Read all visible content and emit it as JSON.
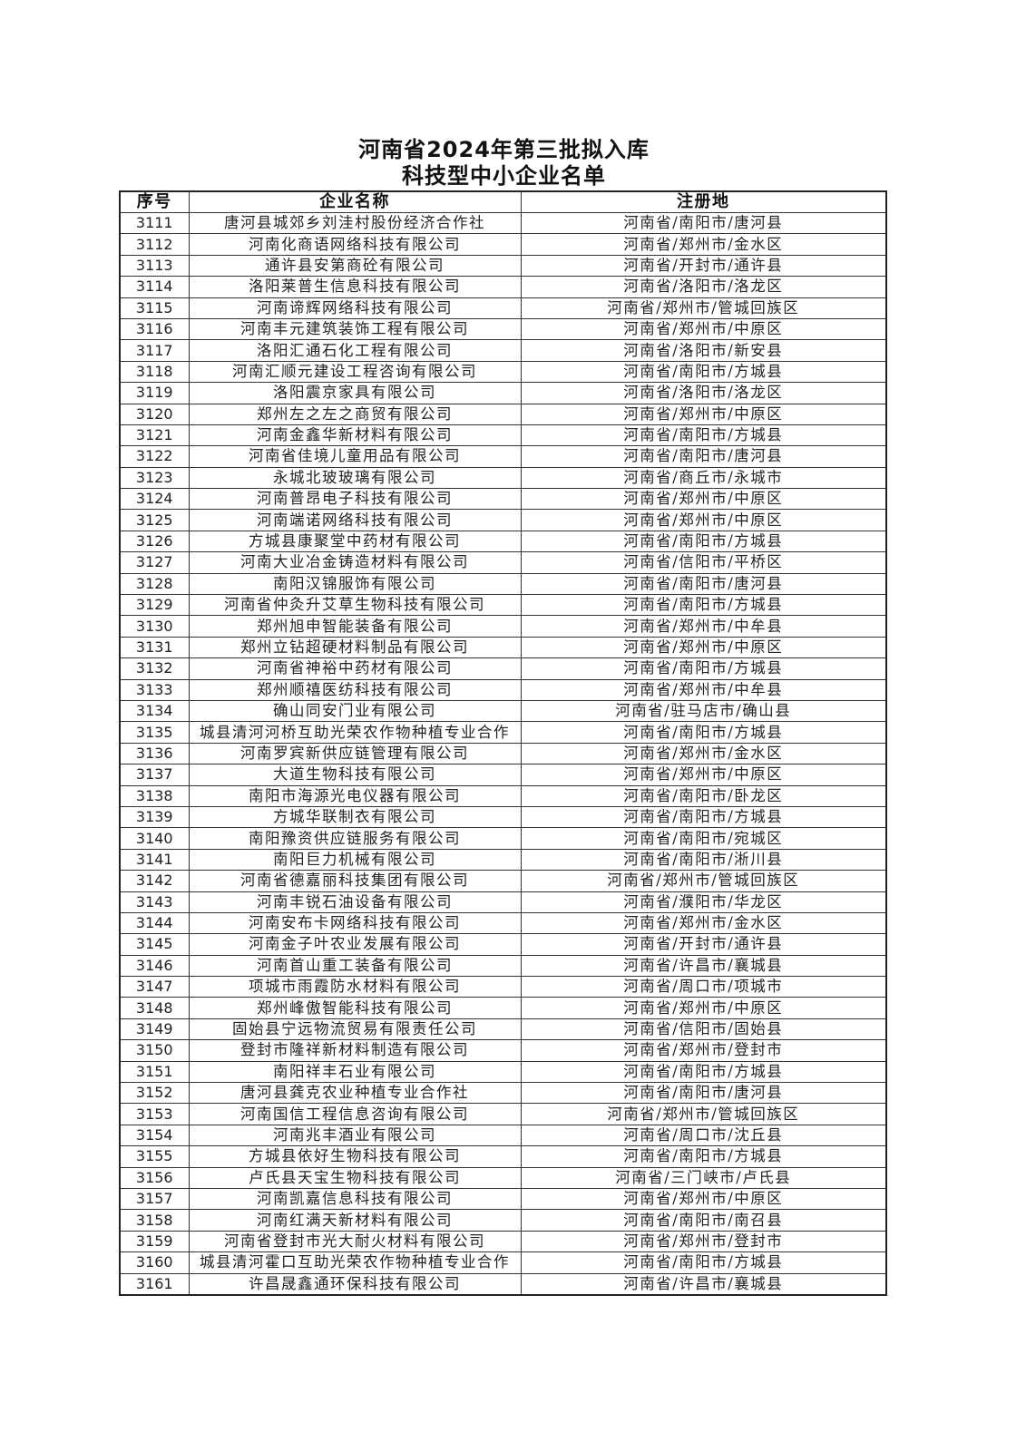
{
  "title": {
    "line1": "河南省2024年第三批拟入库",
    "line2": "科技型中小企业名单"
  },
  "table": {
    "headers": [
      "序号",
      "企业名称",
      "注册地"
    ],
    "rows": [
      [
        "3111",
        "唐河县城郊乡刘洼村股份经济合作社",
        "河南省/南阳市/唐河县"
      ],
      [
        "3112",
        "河南化商语网络科技有限公司",
        "河南省/郑州市/金水区"
      ],
      [
        "3113",
        "通许县安第商砼有限公司",
        "河南省/开封市/通许县"
      ],
      [
        "3114",
        "洛阳莱普生信息科技有限公司",
        "河南省/洛阳市/洛龙区"
      ],
      [
        "3115",
        "河南谛辉网络科技有限公司",
        "河南省/郑州市/管城回族区"
      ],
      [
        "3116",
        "河南丰元建筑装饰工程有限公司",
        "河南省/郑州市/中原区"
      ],
      [
        "3117",
        "洛阳汇通石化工程有限公司",
        "河南省/洛阳市/新安县"
      ],
      [
        "3118",
        "河南汇顺元建设工程咨询有限公司",
        "河南省/南阳市/方城县"
      ],
      [
        "3119",
        "洛阳震京家具有限公司",
        "河南省/洛阳市/洛龙区"
      ],
      [
        "3120",
        "郑州左之左之商贸有限公司",
        "河南省/郑州市/中原区"
      ],
      [
        "3121",
        "河南金鑫华新材料有限公司",
        "河南省/南阳市/方城县"
      ],
      [
        "3122",
        "河南省佳境儿童用品有限公司",
        "河南省/南阳市/唐河县"
      ],
      [
        "3123",
        "永城北玻玻璃有限公司",
        "河南省/商丘市/永城市"
      ],
      [
        "3124",
        "河南普昂电子科技有限公司",
        "河南省/郑州市/中原区"
      ],
      [
        "3125",
        "河南端诺网络科技有限公司",
        "河南省/郑州市/中原区"
      ],
      [
        "3126",
        "方城县康聚堂中药材有限公司",
        "河南省/南阳市/方城县"
      ],
      [
        "3127",
        "河南大业冶金铸造材料有限公司",
        "河南省/信阳市/平桥区"
      ],
      [
        "3128",
        "南阳汉锦服饰有限公司",
        "河南省/南阳市/唐河县"
      ],
      [
        "3129",
        "河南省仲灸升艾草生物科技有限公司",
        "河南省/南阳市/方城县"
      ],
      [
        "3130",
        "郑州旭申智能装备有限公司",
        "河南省/郑州市/中牟县"
      ],
      [
        "3131",
        "郑州立钻超硬材料制品有限公司",
        "河南省/郑州市/中原区"
      ],
      [
        "3132",
        "河南省神裕中药材有限公司",
        "河南省/南阳市/方城县"
      ],
      [
        "3133",
        "郑州顺禧医纺科技有限公司",
        "河南省/郑州市/中牟县"
      ],
      [
        "3134",
        "确山同安门业有限公司",
        "河南省/驻马店市/确山县"
      ],
      [
        "3135",
        "城县清河河桥互助光荣农作物种植专业合作",
        "河南省/南阳市/方城县"
      ],
      [
        "3136",
        "河南罗宾新供应链管理有限公司",
        "河南省/郑州市/金水区"
      ],
      [
        "3137",
        "大道生物科技有限公司",
        "河南省/郑州市/中原区"
      ],
      [
        "3138",
        "南阳市海源光电仪器有限公司",
        "河南省/南阳市/卧龙区"
      ],
      [
        "3139",
        "方城华联制衣有限公司",
        "河南省/南阳市/方城县"
      ],
      [
        "3140",
        "南阳豫资供应链服务有限公司",
        "河南省/南阳市/宛城区"
      ],
      [
        "3141",
        "南阳巨力机械有限公司",
        "河南省/南阳市/淅川县"
      ],
      [
        "3142",
        "河南省德嘉丽科技集团有限公司",
        "河南省/郑州市/管城回族区"
      ],
      [
        "3143",
        "河南丰锐石油设备有限公司",
        "河南省/濮阳市/华龙区"
      ],
      [
        "3144",
        "河南安布卡网络科技有限公司",
        "河南省/郑州市/金水区"
      ],
      [
        "3145",
        "河南金子叶农业发展有限公司",
        "河南省/开封市/通许县"
      ],
      [
        "3146",
        "河南首山重工装备有限公司",
        "河南省/许昌市/襄城县"
      ],
      [
        "3147",
        "项城市雨霞防水材料有限公司",
        "河南省/周口市/项城市"
      ],
      [
        "3148",
        "郑州峰傲智能科技有限公司",
        "河南省/郑州市/中原区"
      ],
      [
        "3149",
        "固始县宁远物流贸易有限责任公司",
        "河南省/信阳市/固始县"
      ],
      [
        "3150",
        "登封市隆祥新材料制造有限公司",
        "河南省/郑州市/登封市"
      ],
      [
        "3151",
        "南阳祥丰石业有限公司",
        "河南省/南阳市/方城县"
      ],
      [
        "3152",
        "唐河县龚克农业种植专业合作社",
        "河南省/南阳市/唐河县"
      ],
      [
        "3153",
        "河南国信工程信息咨询有限公司",
        "河南省/郑州市/管城回族区"
      ],
      [
        "3154",
        "河南兆丰酒业有限公司",
        "河南省/周口市/沈丘县"
      ],
      [
        "3155",
        "方城县依好生物科技有限公司",
        "河南省/南阳市/方城县"
      ],
      [
        "3156",
        "卢氏县天宝生物科技有限公司",
        "河南省/三门峡市/卢氏县"
      ],
      [
        "3157",
        "河南凯嘉信息科技有限公司",
        "河南省/郑州市/中原区"
      ],
      [
        "3158",
        "河南红满天新材料有限公司",
        "河南省/南阳市/南召县"
      ],
      [
        "3159",
        "河南省登封市光大耐火材料有限公司",
        "河南省/郑州市/登封市"
      ],
      [
        "3160",
        "城县清河霍口互助光荣农作物种植专业合作",
        "河南省/南阳市/方城县"
      ],
      [
        "3161",
        "许昌晟鑫通环保科技有限公司",
        "河南省/许昌市/襄城县"
      ]
    ]
  }
}
